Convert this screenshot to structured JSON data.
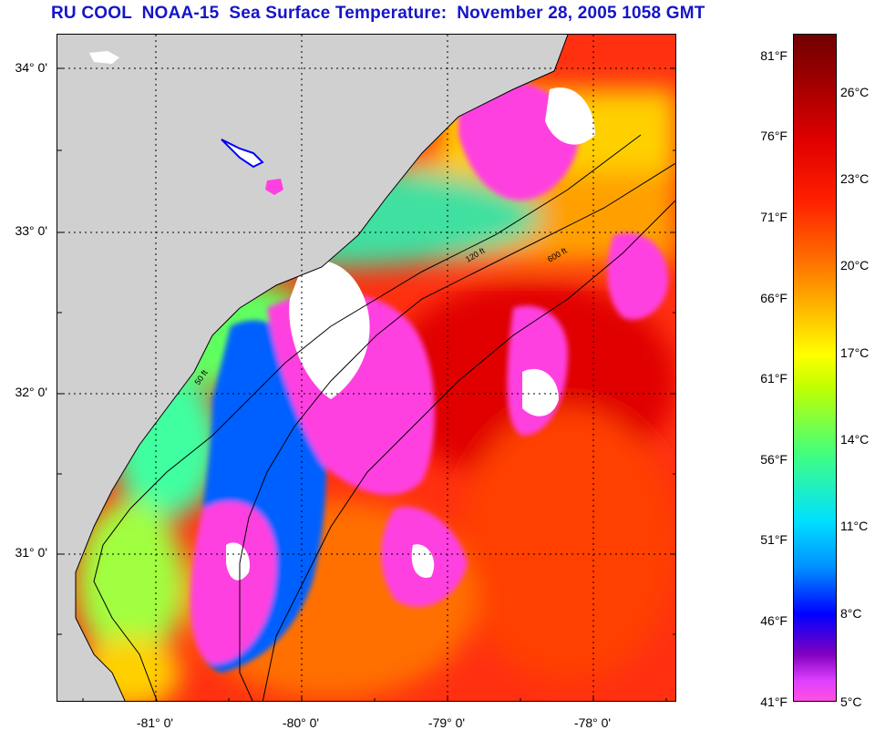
{
  "title": "RU COOL  NOAA-15  Sea Surface Temperature:  November 28, 2005 1058 GMT",
  "map": {
    "lat_labels": [
      "34° 0'",
      "33° 0'",
      "32° 0'",
      "31° 0'"
    ],
    "lon_labels": [
      "-81° 0'",
      "-80° 0'",
      "-79° 0'",
      "-78° 0'"
    ],
    "contour_labels": [
      "50 ft",
      "120 ft",
      "600 ft"
    ]
  },
  "colorbar": {
    "fahrenheit": [
      "81°F",
      "76°F",
      "71°F",
      "66°F",
      "61°F",
      "56°F",
      "51°F",
      "46°F",
      "41°F"
    ],
    "celsius": [
      "26°C",
      "23°C",
      "20°C",
      "17°C",
      "14°C",
      "11°C",
      "8°C",
      "5°C"
    ]
  },
  "colors": {
    "title": "#1515c8",
    "land": "#d0d0d0",
    "cloud": "#ffffff"
  }
}
